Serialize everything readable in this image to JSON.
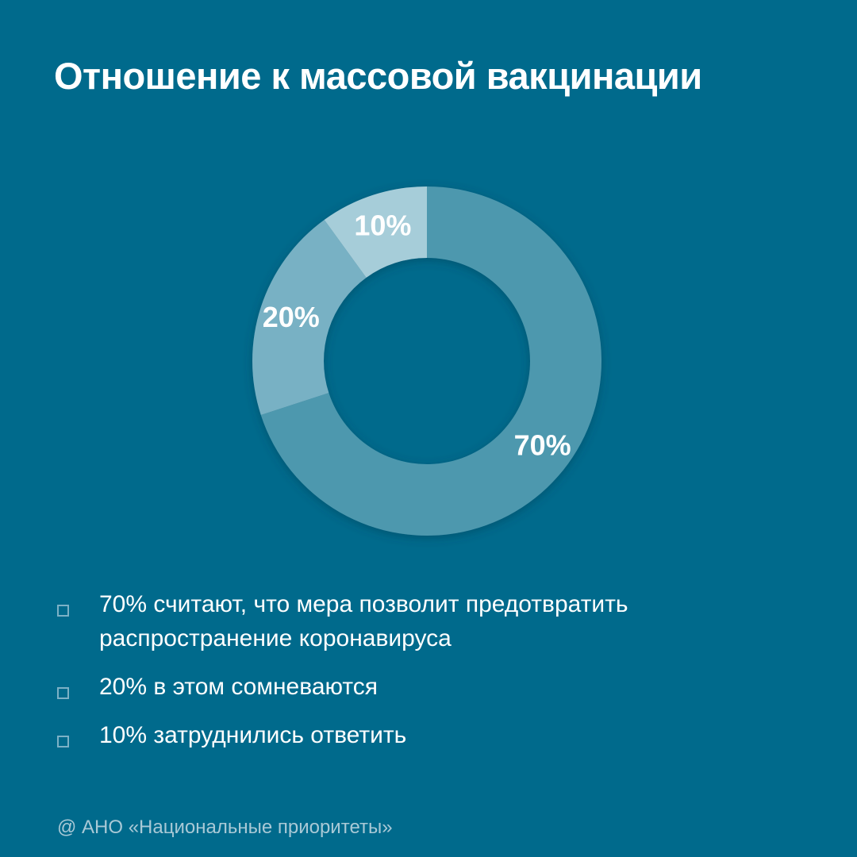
{
  "title": "Отношение к массовой вакцинации",
  "chart_data": {
    "type": "pie",
    "variant": "donut",
    "title": "Отношение к массовой вакцинации",
    "categories": [
      "70%",
      "20%",
      "10%"
    ],
    "values": [
      70,
      20,
      10
    ],
    "data_labels": [
      "70%",
      "20%",
      "10%"
    ],
    "colors": [
      "#4d98ae",
      "#78b1c4",
      "#a6cdd9"
    ],
    "start_position": "top",
    "direction": "clockwise"
  },
  "legend": {
    "items": [
      {
        "label": "70% считают, что мера позволит предотвратить распространение коронавируса"
      },
      {
        "label": "20% в этом сомневаются"
      },
      {
        "label": "10% затруднились ответить"
      }
    ]
  },
  "footer": "@ АНО «Национальные приоритеты»",
  "colors": {
    "background": "#006a8c",
    "legend_box": "#7cb1c6",
    "footer_text": "#a9c9d6"
  }
}
